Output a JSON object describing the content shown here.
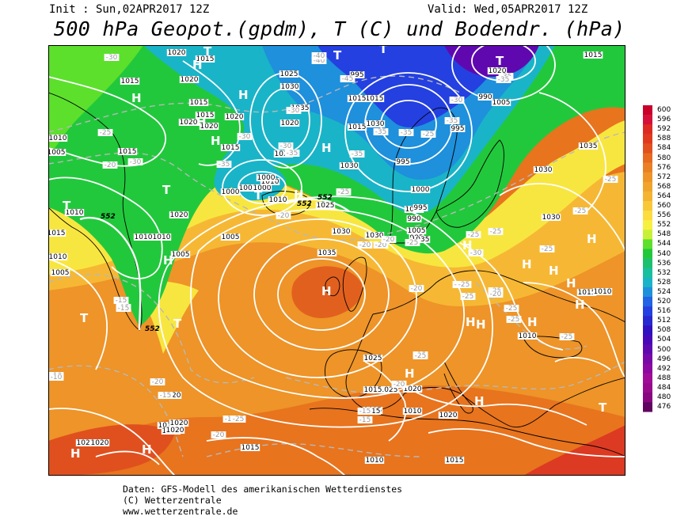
{
  "header": {
    "init": "Init : Sun,02APR2017 12Z",
    "valid": "Valid: Wed,05APR2017 12Z",
    "title": "500 hPa Geopot.(gpdm), T (C) und Bodendr. (hPa)"
  },
  "legend": {
    "labels": [
      "600",
      "596",
      "592",
      "588",
      "584",
      "580",
      "576",
      "572",
      "568",
      "564",
      "560",
      "556",
      "552",
      "548",
      "544",
      "540",
      "536",
      "532",
      "528",
      "524",
      "520",
      "516",
      "512",
      "508",
      "504",
      "500",
      "496",
      "492",
      "488",
      "484",
      "480",
      "476"
    ],
    "colors": [
      "#c8002a",
      "#d4103a",
      "#dc2a22",
      "#e03a1e",
      "#e2501e",
      "#e66a20",
      "#ea8024",
      "#ee9428",
      "#f0a42c",
      "#f4b432",
      "#f8c838",
      "#fcdc3e",
      "#f8f040",
      "#c8f038",
      "#5ce02c",
      "#22c83c",
      "#1cc070",
      "#18c0a0",
      "#1ab4c8",
      "#1e90dc",
      "#2264e4",
      "#2440e0",
      "#2828d0",
      "#3010c0",
      "#4808b8",
      "#6008b0",
      "#7808a8",
      "#8c08a0",
      "#a00c98",
      "#980a8c",
      "#88067e",
      "#600460"
    ]
  },
  "map": {
    "pressure_labels": [
      "1030",
      "1010",
      "1005",
      "1015",
      "1010",
      "1015",
      "1020",
      "1015",
      "1010",
      "1005",
      "1030",
      "1025",
      "1035",
      "1000",
      "1020",
      "1020",
      "1015",
      "1015",
      "1010",
      "1020",
      "1020",
      "1020",
      "1035",
      "1030",
      "1030",
      "1030",
      "1030",
      "1025",
      "1025",
      "1020",
      "1010",
      "1005",
      "1000",
      "1035",
      "1020",
      "1015",
      "1015",
      "1010",
      "1000",
      "1010",
      "1005",
      "1030",
      "1015",
      "1025",
      "1015",
      "1020",
      "1015",
      "1010",
      "1015",
      "1010",
      "1005",
      "1020",
      "995",
      "990",
      "995",
      "995",
      "990",
      "985",
      "995",
      "1000",
      "1000",
      "1005",
      "1010",
      "1020",
      "1020",
      "1015",
      "1030",
      "1035",
      "1030",
      "1020",
      "1015",
      "1015",
      "1015",
      "1020",
      "1015",
      "1020",
      "1020",
      "1015",
      "1010",
      "1010",
      "1015"
    ],
    "temperature_labels": [
      "-30",
      "-25",
      "-20",
      "-15",
      "-15",
      "-35",
      "-30",
      "-30",
      "-35",
      "-35",
      "-30",
      "-25",
      "-40",
      "-35",
      "-45",
      "-35",
      "-40",
      "-30",
      "-35",
      "-35",
      "-30",
      "-25",
      "-20",
      "-20",
      "-25",
      "-25",
      "-25",
      "-20",
      "-25",
      "-25",
      "-30",
      "-25",
      "-25",
      "-25",
      "-25",
      "-25",
      "-25",
      "-20",
      "-20",
      "-15",
      "-15",
      "-15",
      "-20",
      "-20",
      "-25",
      "-15",
      "-10",
      "-25",
      "-20",
      "-25",
      "-10",
      "-15",
      "-25",
      "-20",
      "-35",
      "-25"
    ],
    "geopotential_labels": [
      "552",
      "552",
      "552",
      "552"
    ],
    "high_markers": 22,
    "low_markers": 10
  },
  "credits": {
    "line1": "Daten: GFS-Modell des amerikanischen Wetterdienstes",
    "line2": "(C) Wetterzentrale",
    "line3": "www.wetterzentrale.de"
  }
}
